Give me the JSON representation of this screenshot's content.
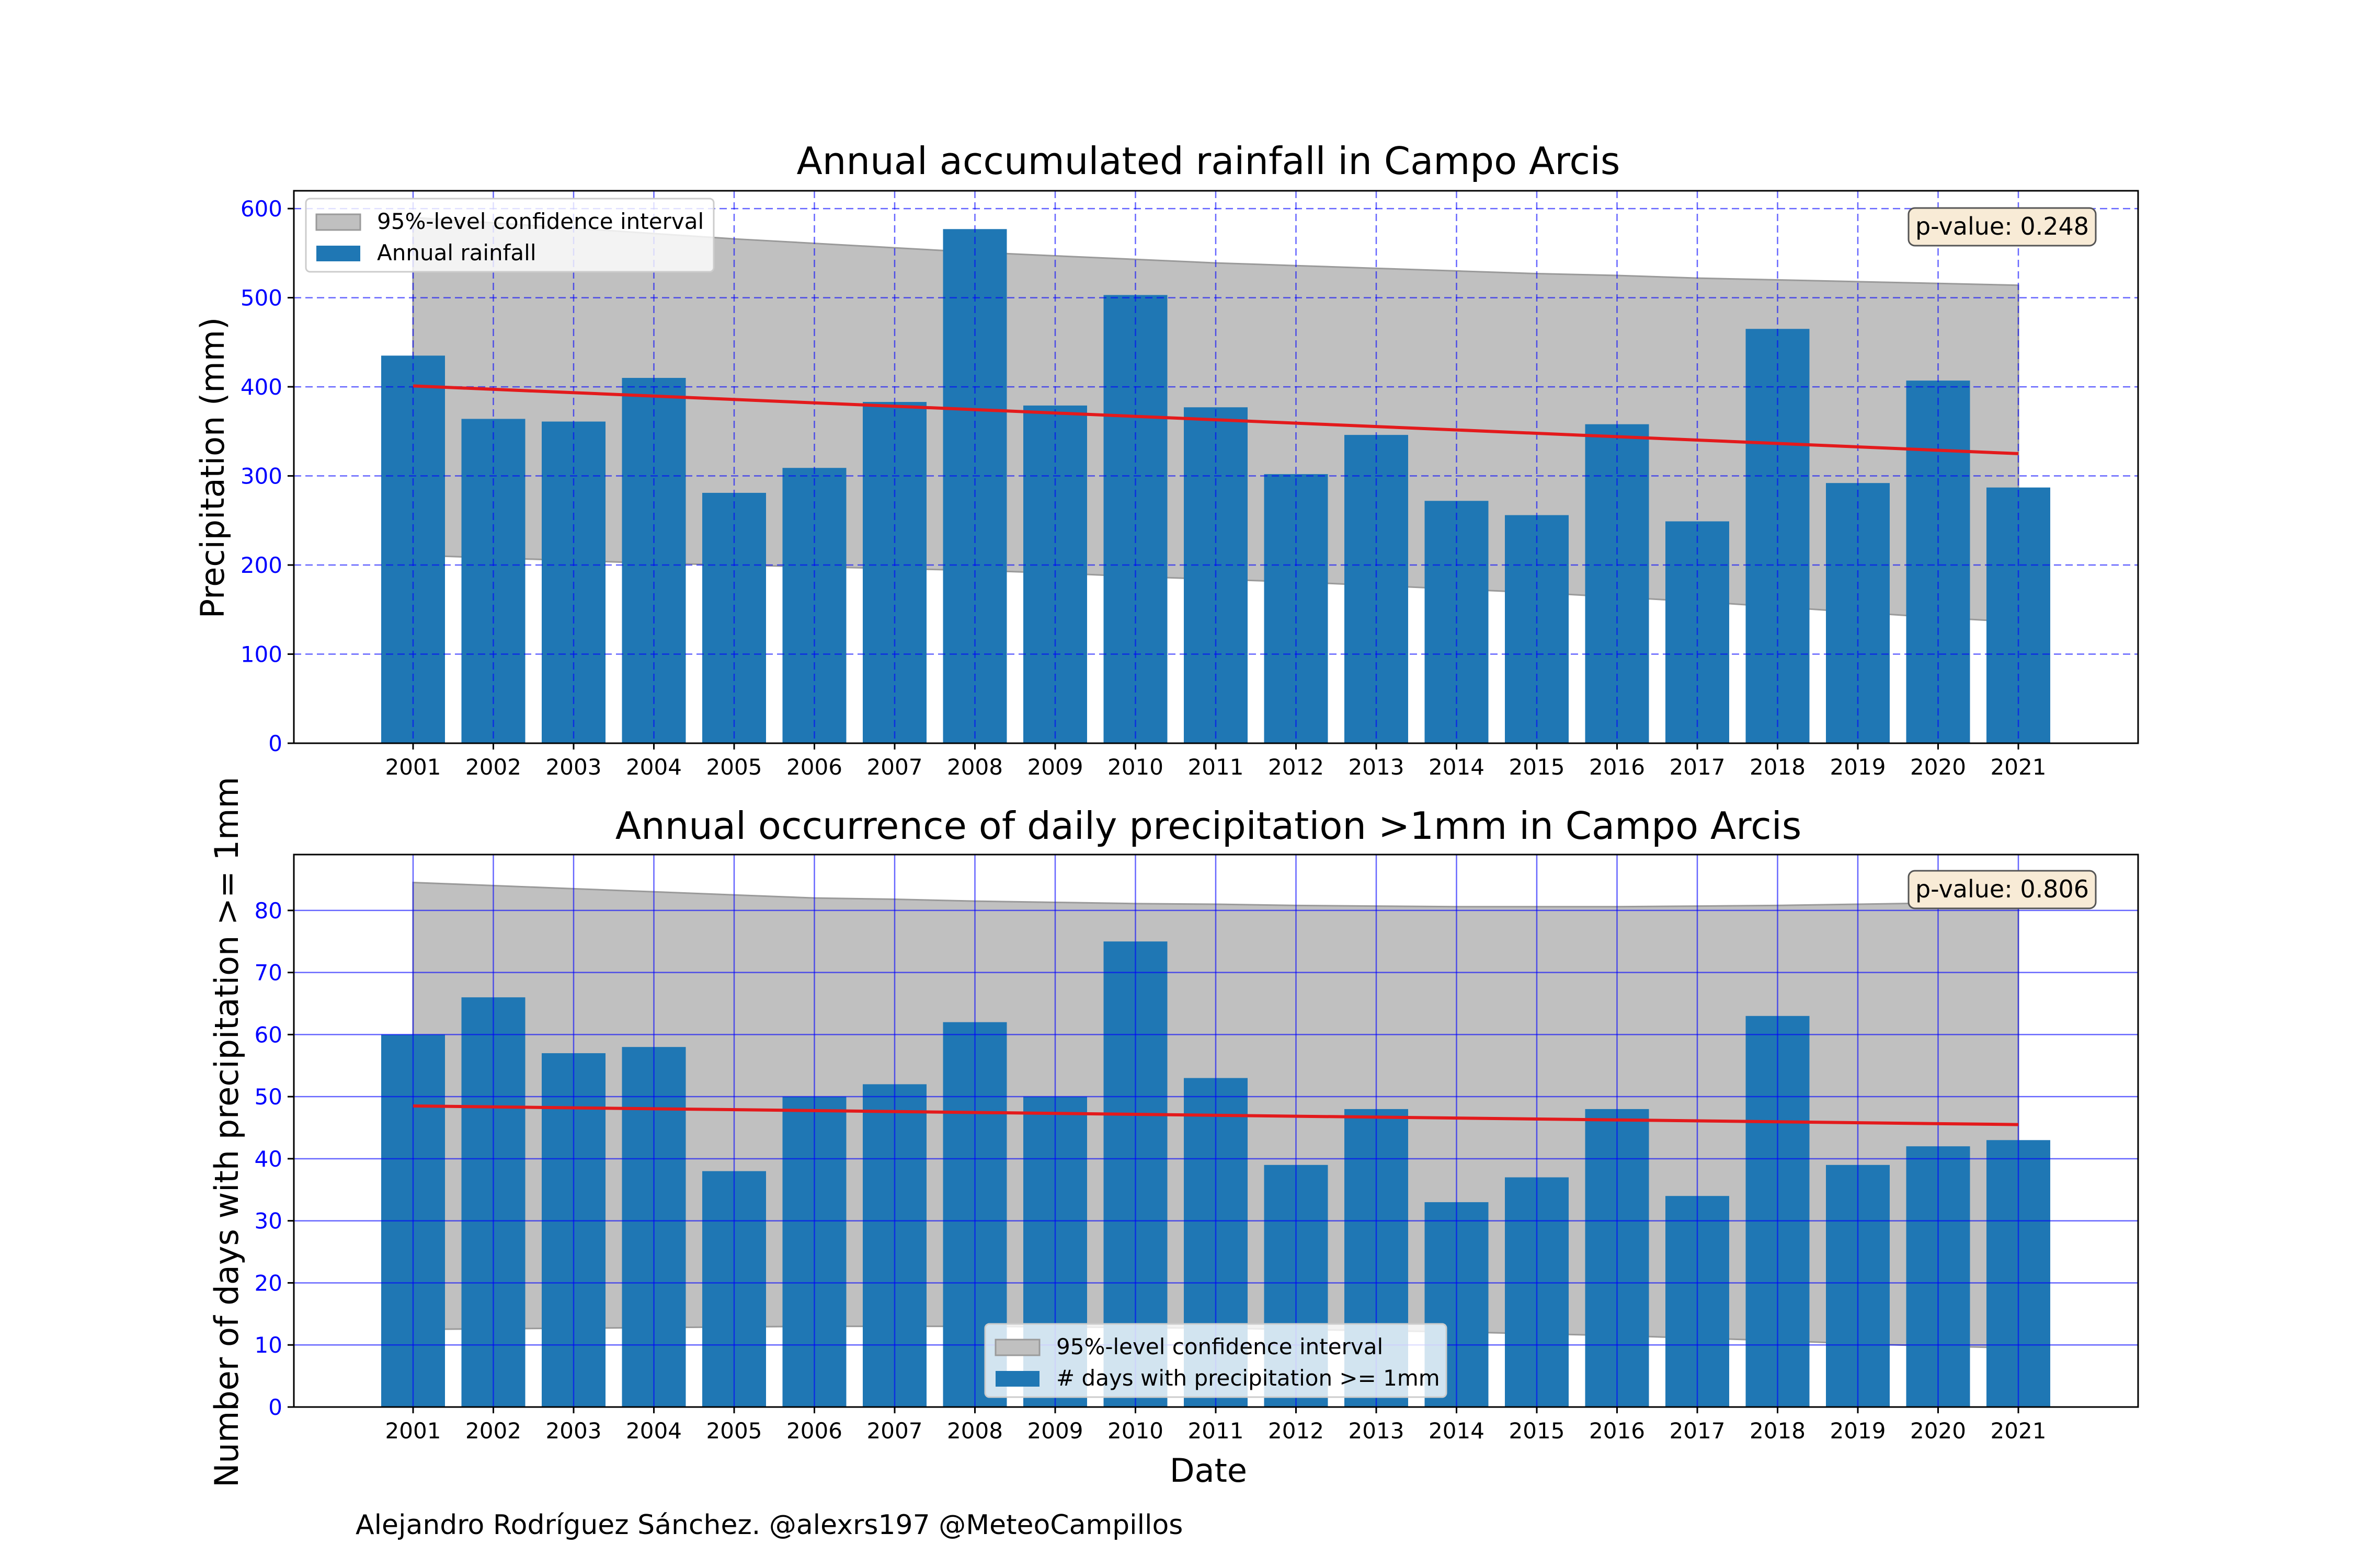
{
  "chart_data": [
    {
      "type": "bar",
      "title": "Annual accumulated rainfall in Campo Arcis",
      "xlabel": "",
      "ylabel": "Precipitation (mm)",
      "ylim": [
        0,
        620
      ],
      "yticks": [
        0,
        100,
        200,
        300,
        400,
        500,
        600
      ],
      "categories": [
        "2001",
        "2002",
        "2003",
        "2004",
        "2005",
        "2006",
        "2007",
        "2008",
        "2009",
        "2010",
        "2011",
        "2012",
        "2013",
        "2014",
        "2015",
        "2016",
        "2017",
        "2018",
        "2019",
        "2020",
        "2021"
      ],
      "series": [
        {
          "name": "Annual rainfall",
          "values": [
            435,
            364,
            361,
            410,
            281,
            309,
            383,
            577,
            379,
            503,
            377,
            302,
            346,
            272,
            256,
            358,
            249,
            465,
            292,
            407,
            287
          ]
        }
      ],
      "trend": {
        "start": 401,
        "end": 325
      },
      "confidence_interval": {
        "name": "95%-level confidence interval",
        "upper": [
          590,
          584,
          578,
          572,
          566,
          561,
          556,
          551,
          547,
          543,
          539,
          536,
          533,
          530,
          527,
          525,
          522,
          520,
          518,
          516,
          514
        ],
        "lower": [
          211,
          208,
          205,
          202,
          200,
          198,
          196,
          194,
          191,
          187,
          184,
          181,
          177,
          173,
          169,
          164,
          159,
          153,
          147,
          141,
          136
        ]
      },
      "p_value_label": "p-value: 0.248",
      "legend": "top-left",
      "grid": true
    },
    {
      "type": "bar",
      "title": "Annual occurrence of daily precipitation >1mm in Campo Arcis",
      "xlabel": "Date",
      "ylabel": "Number of days with precipitation >= 1mm",
      "ylim": [
        0,
        89
      ],
      "yticks": [
        0,
        10,
        20,
        30,
        40,
        50,
        60,
        70,
        80
      ],
      "categories": [
        "2001",
        "2002",
        "2003",
        "2004",
        "2005",
        "2006",
        "2007",
        "2008",
        "2009",
        "2010",
        "2011",
        "2012",
        "2013",
        "2014",
        "2015",
        "2016",
        "2017",
        "2018",
        "2019",
        "2020",
        "2021"
      ],
      "series": [
        {
          "name": "# days with precipitation >= 1mm",
          "values": [
            60,
            66,
            57,
            58,
            38,
            50,
            52,
            62,
            50,
            75,
            53,
            39,
            48,
            33,
            37,
            48,
            34,
            63,
            39,
            42,
            43
          ]
        }
      ],
      "trend": {
        "start": 48.5,
        "end": 45.5
      },
      "confidence_interval": {
        "name": "95%-level confidence interval",
        "upper": [
          84.5,
          84.0,
          83.5,
          83.0,
          82.5,
          82.0,
          81.8,
          81.5,
          81.3,
          81.1,
          81.0,
          80.8,
          80.7,
          80.6,
          80.6,
          80.6,
          80.7,
          80.8,
          81.0,
          81.2,
          81.5
        ],
        "lower": [
          12.5,
          12.6,
          12.7,
          12.8,
          12.9,
          13.0,
          13.0,
          13.0,
          12.9,
          12.8,
          12.7,
          12.5,
          12.3,
          12.1,
          11.8,
          11.5,
          11.1,
          10.7,
          10.2,
          9.8,
          9.5
        ]
      },
      "p_value_label": "p-value: 0.806",
      "legend": "lower center",
      "grid": true
    }
  ],
  "footer": {
    "credit": "Alejandro Rodríguez Sánchez. @alexrs197 @MeteoCampillos"
  },
  "colors": {
    "bar": "#1f77b4",
    "trend": "#e31a1c",
    "ci_fill": "#c0c0c0",
    "ci_edge": "#9a9a9a",
    "grid": "#0000ff",
    "ytick": "#0000ff",
    "pbox_fill": "#f8ebd6",
    "pbox_edge": "#555555"
  }
}
